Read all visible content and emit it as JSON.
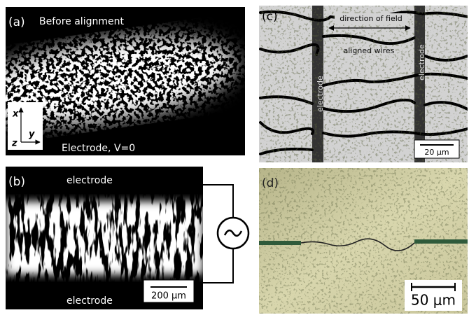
{
  "panels": [
    {
      "label": "(a)",
      "title": "Before alignment",
      "axes": {
        "x": "x",
        "y": "y",
        "z": "z"
      },
      "caption": "Electrode, V=0"
    },
    {
      "label": "(b)",
      "top": "electrode",
      "bottom": "electrode",
      "scale": "200 μm"
    },
    {
      "label": "(c)",
      "arrow": "direction of field",
      "wires": "aligned wires",
      "electrodes": [
        "electrode",
        "electrode"
      ],
      "scale": "20 μm"
    },
    {
      "label": "(d)",
      "scale": "50 μm"
    }
  ]
}
